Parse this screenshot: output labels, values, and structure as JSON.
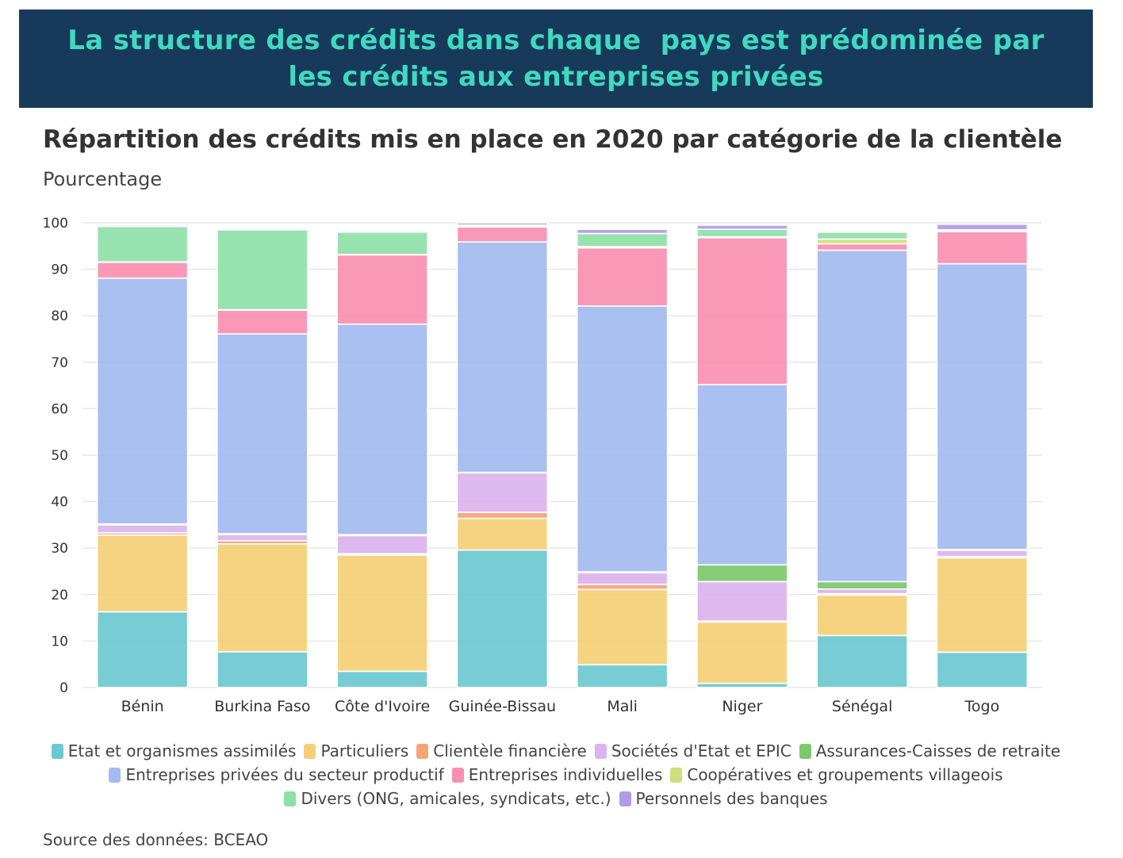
{
  "banner": {
    "line1": "La structure des crédits dans chaque  pays est prédominée par",
    "line2": "les crédits aux entreprises privées"
  },
  "colors": {
    "banner_background": "#183a5a",
    "banner_text": "#3fd9c0"
  },
  "chart_data": {
    "type": "bar",
    "stacked": true,
    "title": "Répartition des crédits mis en place en 2020 par catégorie de la clientèle",
    "subtitle": "Pourcentage",
    "xlabel": "",
    "ylabel": "Pourcentage",
    "ylim": [
      0,
      100
    ],
    "yticks": [
      0,
      10,
      20,
      30,
      40,
      50,
      60,
      70,
      80,
      90,
      100
    ],
    "grid": true,
    "legend_position": "bottom",
    "categories": [
      "Bénin",
      "Burkina Faso",
      "Côte d'Ivoire",
      "Guinée-Bissau",
      "Mali",
      "Niger",
      "Sénégal",
      "Togo"
    ],
    "series": [
      {
        "name": "Etat et organismes assimilés",
        "color": "#6cc8d0",
        "values": [
          16.3,
          7.7,
          3.5,
          29.6,
          4.9,
          0.9,
          11.2,
          7.6
        ]
      },
      {
        "name": "Particuliers",
        "color": "#f4cf76",
        "values": [
          16.5,
          23.2,
          25.0,
          6.8,
          16.2,
          13.2,
          8.7,
          20.3
        ]
      },
      {
        "name": "Clientèle financière",
        "color": "#f5a47a",
        "values": [
          0.5,
          0.7,
          0.3,
          1.3,
          1.1,
          0.2,
          0.3,
          0.3
        ]
      },
      {
        "name": "Sociétés d'Etat et EPIC",
        "color": "#dbb3ef",
        "values": [
          1.7,
          1.3,
          3.9,
          8.5,
          2.5,
          8.5,
          1.0,
          1.3
        ]
      },
      {
        "name": "Assurances-Caisses de retraite",
        "color": "#7dc86a",
        "values": [
          0.2,
          0.2,
          0.2,
          0.1,
          0.2,
          3.6,
          1.6,
          0.2
        ]
      },
      {
        "name": "Entreprises privées du secteur productif",
        "color": "#a3bbf0",
        "values": [
          52.9,
          43.0,
          45.3,
          49.6,
          57.2,
          38.8,
          71.3,
          61.5
        ]
      },
      {
        "name": "Entreprises individuelles",
        "color": "#f98fb1",
        "values": [
          3.4,
          5.1,
          14.9,
          3.2,
          12.5,
          31.6,
          1.4,
          6.9
        ]
      },
      {
        "name": "Coopératives et groupements villageois",
        "color": "#cbe07a",
        "values": [
          0.1,
          0.1,
          0.1,
          0.1,
          0.3,
          0.2,
          1.0,
          0.1
        ]
      },
      {
        "name": "Divers (ONG, amicales, syndicats, etc.)",
        "color": "#8fe0a8",
        "values": [
          7.6,
          17.2,
          4.8,
          0.3,
          2.8,
          1.6,
          1.5,
          0.3
        ]
      },
      {
        "name": "Personnels des banques",
        "color": "#b09ce8",
        "values": [
          0.3,
          0.2,
          0.2,
          0.5,
          0.9,
          0.9,
          0.3,
          1.2
        ]
      }
    ]
  },
  "source": "Source des données: BCEAO"
}
